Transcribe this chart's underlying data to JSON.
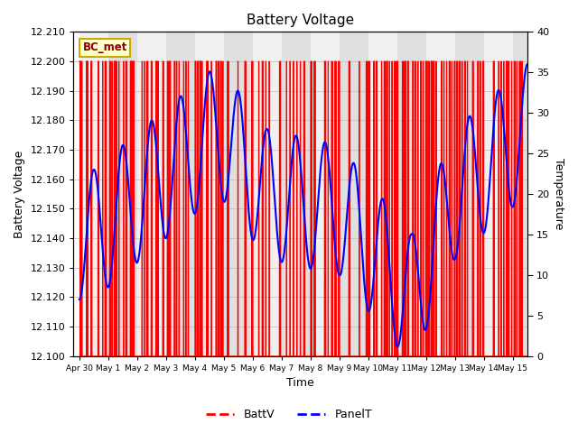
{
  "title": "Battery Voltage",
  "xlabel": "Time",
  "ylabel_left": "Battery Voltage",
  "ylabel_right": "Temperature",
  "ylim_left": [
    12.1,
    12.21
  ],
  "ylim_right": [
    0,
    40
  ],
  "xlim": [
    -0.2,
    15.5
  ],
  "x_tick_labels": [
    "Apr 30",
    "May 1",
    "May 2",
    "May 3",
    "May 4",
    "May 5",
    "May 6",
    "May 7",
    "May 8",
    "May 9",
    "May 10",
    "May 11",
    "May 12",
    "May 13",
    "May 14",
    "May 15"
  ],
  "x_tick_positions": [
    0,
    1,
    2,
    3,
    4,
    5,
    6,
    7,
    8,
    9,
    10,
    11,
    12,
    13,
    14,
    15
  ],
  "label_text": "BC_met",
  "background_color": "#ffffff",
  "band_color_dark": "#e0e0e0",
  "band_color_light": "#f0f0f0",
  "title_fontsize": 11,
  "axis_label_fontsize": 9,
  "tick_fontsize": 8
}
